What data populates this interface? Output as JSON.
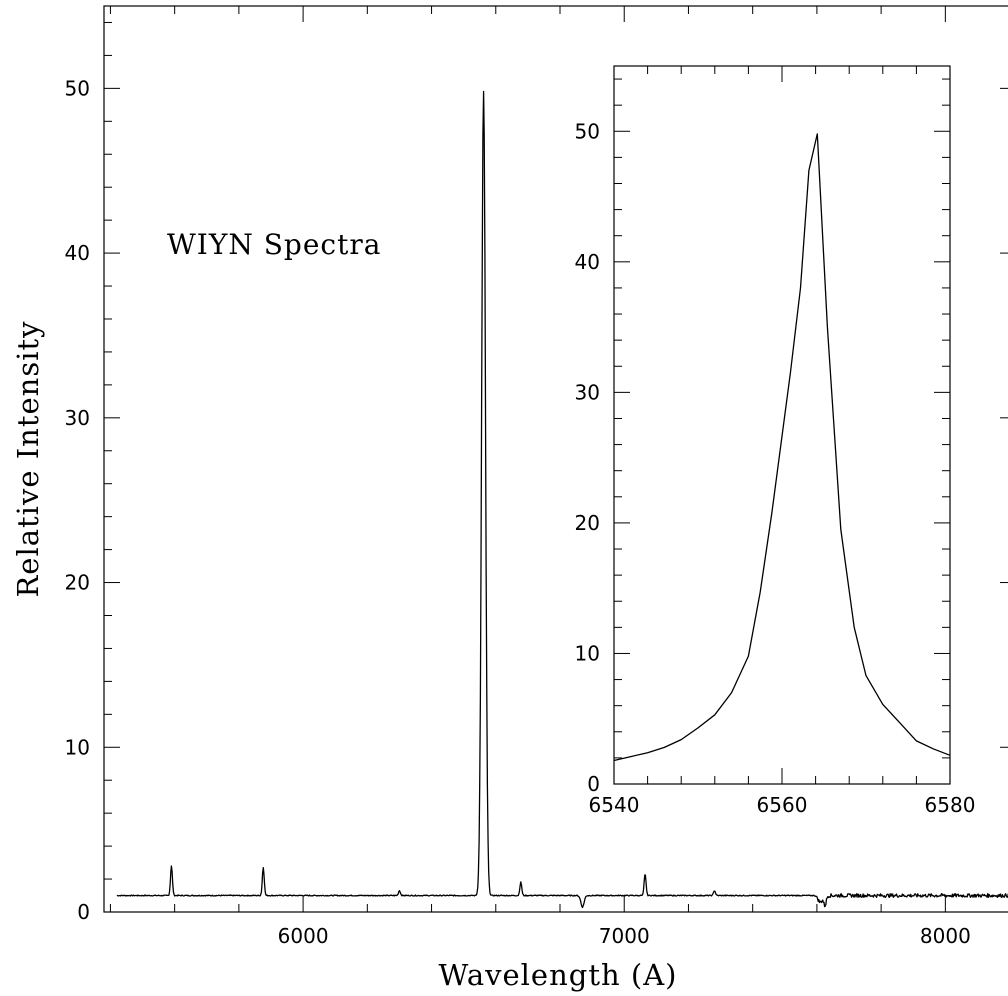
{
  "chart_data": [
    {
      "type": "line",
      "xlabel": "Wavelength (A)",
      "ylabel": "Relative Intensity",
      "annotation": "WIYN Spectra",
      "xlim": [
        5380,
        8220
      ],
      "ylim": [
        0,
        55
      ],
      "xticks": [
        6000,
        7000,
        8000
      ],
      "xtick_labels": [
        "6000",
        "7000",
        "8000"
      ],
      "yticks": [
        0,
        10,
        20,
        30,
        40,
        50
      ],
      "ytick_labels": [
        "0",
        "10",
        "20",
        "30",
        "40",
        "50"
      ],
      "grid": false,
      "legend": "none",
      "series": [
        {
          "continuum": 1.0,
          "x_range": [
            5420,
            8200
          ],
          "lines": [
            {
              "x": 5590,
              "peak": 2.8,
              "width": 3
            },
            {
              "x": 5876,
              "peak": 2.7,
              "width": 3
            },
            {
              "x": 6300,
              "peak": 1.3,
              "width": 3
            },
            {
              "x": 6562,
              "peak": 49.8,
              "width": 6
            },
            {
              "x": 6678,
              "peak": 1.8,
              "width": 3
            },
            {
              "x": 6870,
              "peak": 0.7,
              "width": 5
            },
            {
              "x": 7065,
              "peak": 2.3,
              "width": 3
            },
            {
              "x": 7281,
              "peak": 1.3,
              "width": 3
            },
            {
              "x": 7610,
              "peak": 0.4,
              "width": 6
            },
            {
              "x": 7625,
              "peak": 0.6,
              "width": 4
            }
          ]
        }
      ]
    },
    {
      "type": "line",
      "xlim": [
        6540,
        6580
      ],
      "ylim": [
        0,
        55
      ],
      "xticks": [
        6540,
        6560,
        6580
      ],
      "xtick_labels": [
        "6540",
        "6560",
        "6580"
      ],
      "yticks": [
        0,
        10,
        20,
        30,
        40,
        50
      ],
      "ytick_labels": [
        "0",
        "10",
        "20",
        "30",
        "40",
        "50"
      ],
      "grid": false,
      "legend": "none",
      "series": [
        {
          "x": [
            6540,
            6542,
            6544,
            6546,
            6548,
            6550,
            6552,
            6554,
            6556,
            6557.4,
            6558.8,
            6561,
            6562.2,
            6563.2,
            6564.2,
            6565.4,
            6567,
            6568.6,
            6570,
            6572,
            6574,
            6576,
            6578,
            6580
          ],
          "y": [
            1.8,
            2.1,
            2.4,
            2.8,
            3.4,
            4.3,
            5.3,
            7,
            9.8,
            14.7,
            20.8,
            31.5,
            38,
            47,
            49.8,
            35,
            19.5,
            12,
            8.3,
            6.1,
            4.7,
            3.3,
            2.7,
            2.2
          ]
        }
      ]
    }
  ]
}
